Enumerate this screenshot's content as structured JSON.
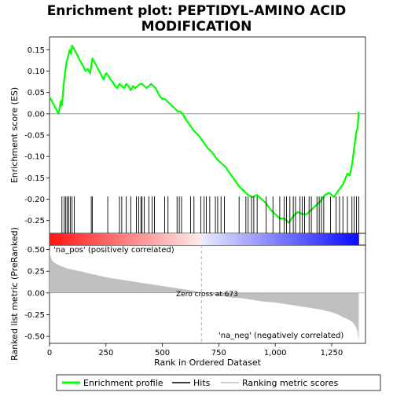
{
  "chart_data": {
    "type": "line",
    "title_line1": "Enrichment plot: PEPTIDYL-AMINO ACID",
    "title_line2": "MODIFICATION",
    "panels": {
      "enrichment": {
        "ylabel": "Enrichment score (ES)",
        "ylim": [
          -0.28,
          0.18
        ],
        "yticks": [
          0.15,
          0.1,
          0.05,
          0.0,
          -0.05,
          -0.1,
          -0.15,
          -0.2,
          -0.25
        ],
        "ytick_labels": [
          "0.15",
          "0.10",
          "0.05",
          "0.00",
          "-0.05",
          "-0.10",
          "-0.15",
          "-0.20",
          "-0.25"
        ],
        "line_color": "#00ff00",
        "series": [
          {
            "x": [
              0,
              10,
              20,
              30,
              40,
              50,
              55,
              60,
              65,
              70,
              75,
              80,
              85,
              90,
              95,
              100,
              110,
              120,
              130,
              140,
              150,
              160,
              170,
              180,
              190,
              195,
              200,
              210,
              220,
              230,
              240,
              250,
              260,
              270,
              280,
              290,
              300,
              310,
              320,
              330,
              340,
              350,
              360,
              370,
              380,
              390,
              400,
              410,
              420,
              430,
              440,
              450,
              460,
              470,
              480,
              490,
              500,
              510,
              520,
              530,
              540,
              550,
              560,
              570,
              580,
              590,
              600,
              620,
              640,
              660,
              680,
              700,
              720,
              740,
              760,
              780,
              800,
              820,
              840,
              860,
              880,
              900,
              920,
              940,
              960,
              980,
              1000,
              1020,
              1040,
              1060,
              1080,
              1100,
              1120,
              1140,
              1160,
              1180,
              1200,
              1220,
              1240,
              1260,
              1280,
              1300,
              1320,
              1330,
              1340,
              1350,
              1360,
              1365,
              1370
            ],
            "y": [
              0.04,
              0.03,
              0.02,
              0.01,
              0.0,
              0.03,
              0.02,
              0.05,
              0.08,
              0.1,
              0.12,
              0.13,
              0.14,
              0.15,
              0.14,
              0.16,
              0.15,
              0.14,
              0.13,
              0.12,
              0.11,
              0.1,
              0.105,
              0.095,
              0.13,
              0.125,
              0.12,
              0.11,
              0.1,
              0.09,
              0.08,
              0.095,
              0.09,
              0.08,
              0.075,
              0.065,
              0.06,
              0.07,
              0.065,
              0.06,
              0.07,
              0.065,
              0.055,
              0.065,
              0.06,
              0.065,
              0.07,
              0.07,
              0.065,
              0.06,
              0.065,
              0.07,
              0.065,
              0.06,
              0.05,
              0.04,
              0.035,
              0.035,
              0.03,
              0.025,
              0.02,
              0.015,
              0.01,
              0.005,
              0.005,
              0.0,
              -0.01,
              -0.025,
              -0.04,
              -0.05,
              -0.065,
              -0.08,
              -0.09,
              -0.105,
              -0.115,
              -0.125,
              -0.14,
              -0.155,
              -0.17,
              -0.18,
              -0.19,
              -0.195,
              -0.19,
              -0.2,
              -0.21,
              -0.225,
              -0.235,
              -0.245,
              -0.245,
              -0.255,
              -0.24,
              -0.23,
              -0.235,
              -0.235,
              -0.225,
              -0.215,
              -0.205,
              -0.19,
              -0.185,
              -0.195,
              -0.18,
              -0.165,
              -0.14,
              -0.145,
              -0.12,
              -0.08,
              -0.04,
              -0.035,
              0.005
            ]
          }
        ]
      },
      "hits": {
        "positions": [
          55,
          65,
          72,
          78,
          85,
          92,
          100,
          110,
          185,
          190,
          258,
          310,
          320,
          340,
          360,
          385,
          395,
          405,
          410,
          420,
          440,
          455,
          465,
          510,
          525,
          565,
          575,
          585,
          625,
          640,
          670,
          685,
          695,
          710,
          735,
          745,
          760,
          775,
          840,
          870,
          880,
          895,
          905,
          920,
          960,
          990,
          1020,
          1040,
          1050,
          1065,
          1080,
          1090,
          1110,
          1120,
          1130,
          1150,
          1160,
          1185,
          1195,
          1205,
          1215,
          1245,
          1270,
          1285,
          1300,
          1320,
          1340,
          1350,
          1360,
          1370
        ]
      },
      "metric": {
        "ylabel": "Ranked list metric (PreRanked)",
        "xlabel": "Rank in Ordered Dataset",
        "ylim": [
          -0.58,
          0.55
        ],
        "yticks": [
          0.5,
          0.25,
          0.0,
          -0.25,
          -0.5
        ],
        "ytick_labels": [
          "0.50",
          "0.25",
          "0.00",
          "-0.25",
          "-0.50"
        ],
        "xlim": [
          0,
          1400
        ],
        "xticks": [
          0,
          250,
          500,
          750,
          1000,
          1250
        ],
        "xtick_labels": [
          "0",
          "250",
          "500",
          "750",
          "1,000",
          "1,250"
        ],
        "fill_color": "#c0c0c0",
        "profile_x": [
          0,
          5,
          10,
          20,
          40,
          60,
          80,
          100,
          150,
          200,
          250,
          300,
          350,
          400,
          450,
          500,
          550,
          600,
          650,
          673,
          700,
          750,
          800,
          850,
          900,
          950,
          1000,
          1050,
          1100,
          1150,
          1200,
          1250,
          1280,
          1300,
          1320,
          1340,
          1350,
          1360,
          1365,
          1370
        ],
        "profile_y": [
          0.5,
          0.42,
          0.38,
          0.35,
          0.32,
          0.3,
          0.28,
          0.27,
          0.24,
          0.21,
          0.18,
          0.16,
          0.14,
          0.12,
          0.1,
          0.08,
          0.06,
          0.04,
          0.02,
          0.0,
          -0.01,
          -0.03,
          -0.05,
          -0.06,
          -0.08,
          -0.1,
          -0.11,
          -0.13,
          -0.15,
          -0.17,
          -0.19,
          -0.22,
          -0.25,
          -0.28,
          -0.3,
          -0.33,
          -0.36,
          -0.4,
          -0.45,
          -0.55
        ],
        "zero_cross_label": "Zero cross at 673",
        "zero_cross_rank": 673,
        "pos_label": "'na_pos' (positively correlated)",
        "neg_label": "'na_neg' (negatively correlated)",
        "pos_color": "#ff0000",
        "neg_color": "#0000ff"
      }
    },
    "legend": {
      "items": [
        {
          "label": "Enrichment profile",
          "color": "#00ff00"
        },
        {
          "label": "Hits",
          "color": "#000000"
        },
        {
          "label": "Ranking metric scores",
          "color": "#c0c0c0"
        }
      ]
    }
  }
}
